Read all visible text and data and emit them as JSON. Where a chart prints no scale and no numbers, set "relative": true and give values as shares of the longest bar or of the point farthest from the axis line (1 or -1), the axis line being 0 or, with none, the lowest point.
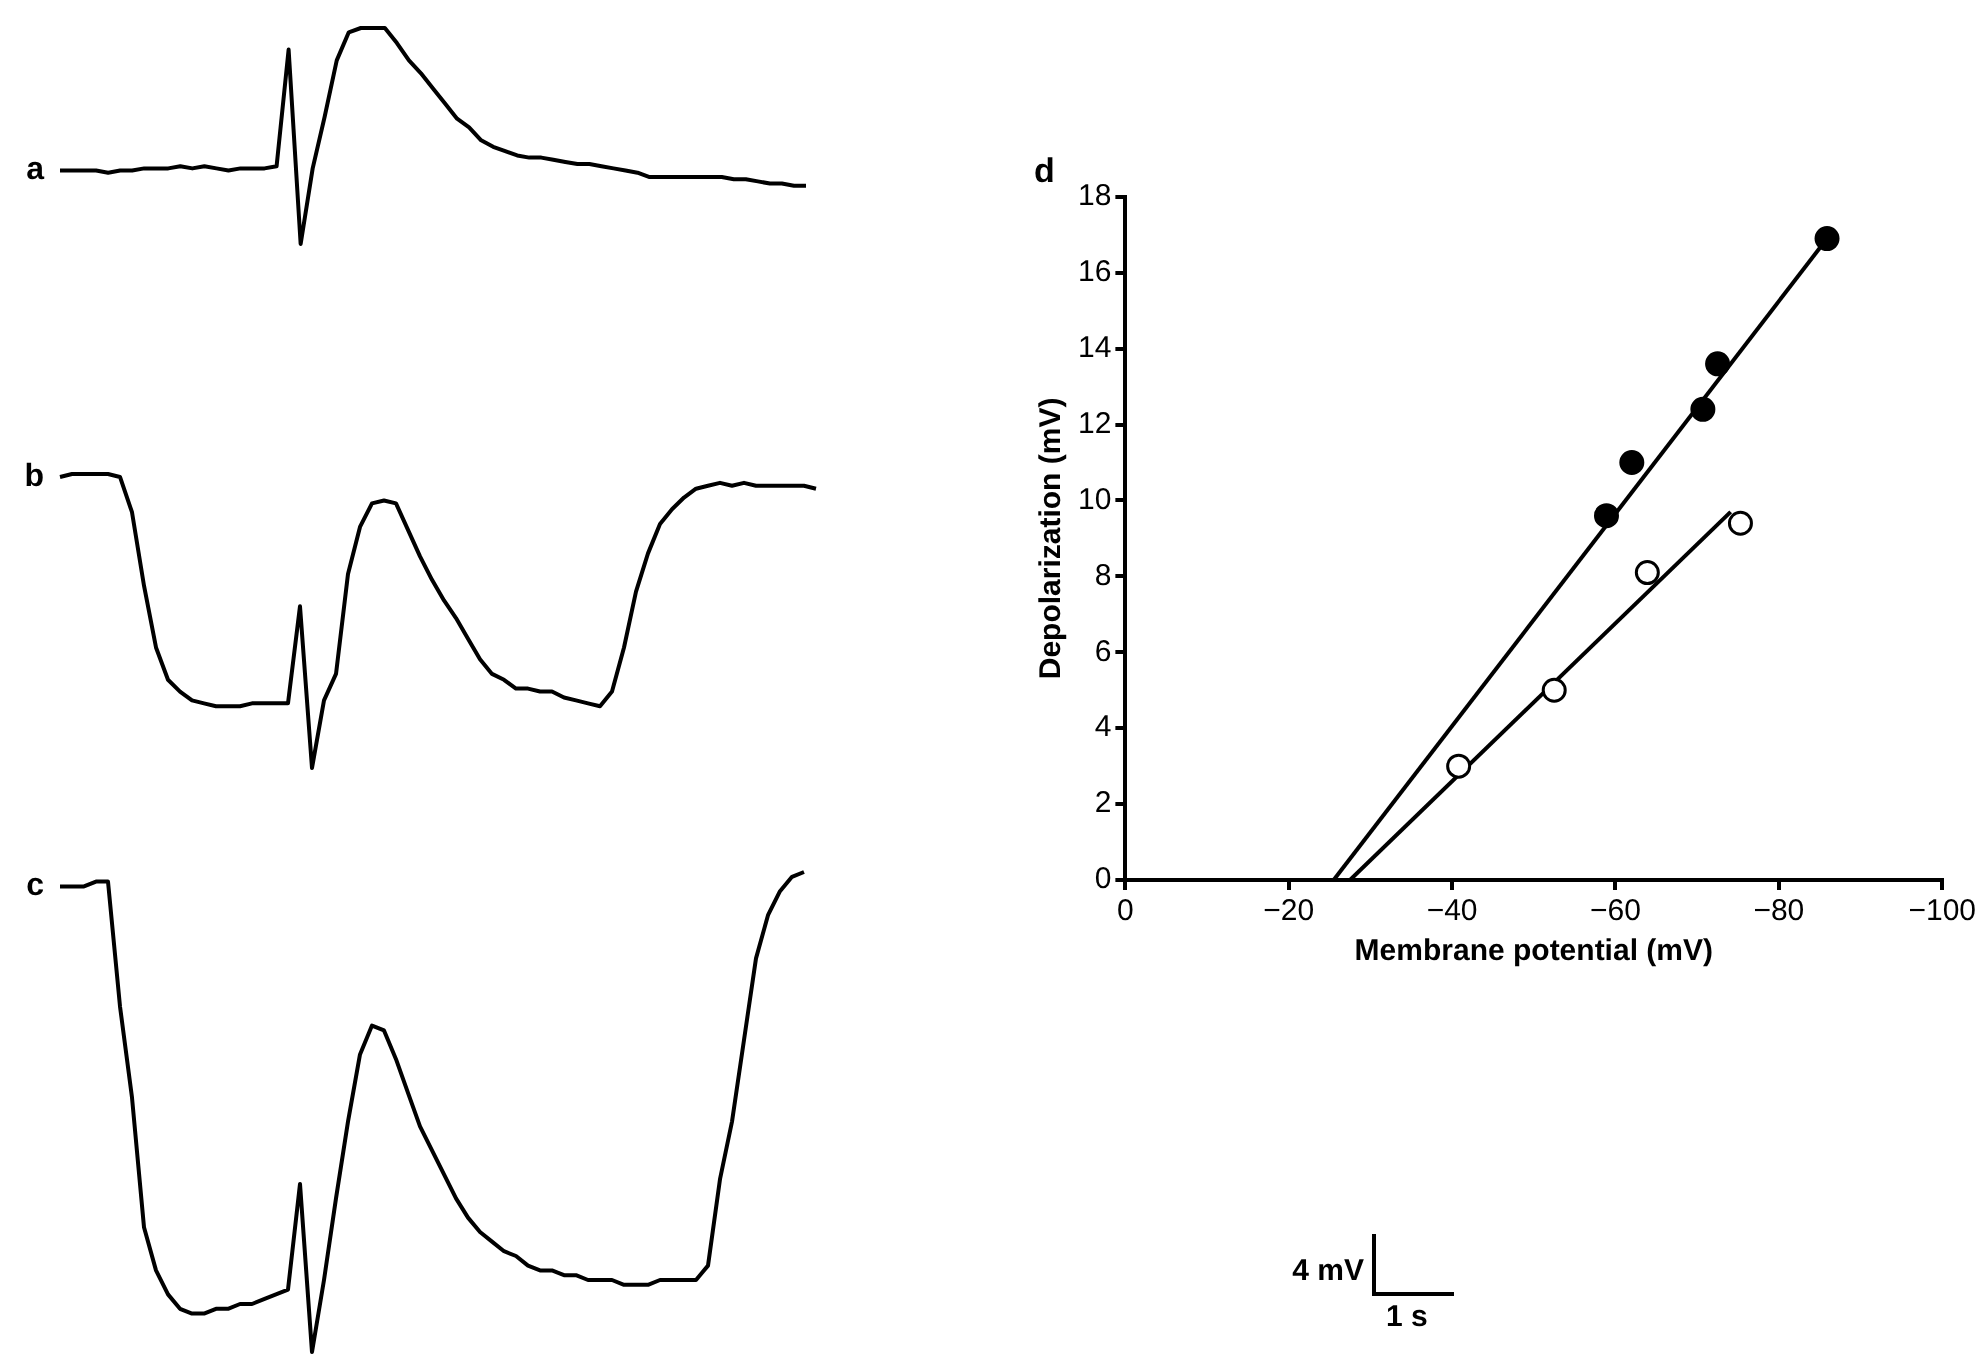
{
  "chart_data": [
    {
      "type": "line",
      "title": "a",
      "relative": true,
      "grid": false,
      "legend": false,
      "marker": "none",
      "categories": [
        null,
        null,
        null,
        null,
        null,
        null,
        null,
        null,
        null,
        null,
        null,
        null,
        null,
        null,
        null,
        null,
        null,
        null,
        null,
        null,
        null,
        null,
        null,
        null,
        null,
        null,
        null,
        null,
        null,
        null,
        null,
        null,
        null,
        null,
        null,
        null,
        null,
        null,
        null,
        null,
        null,
        null,
        null,
        null,
        null,
        null,
        null,
        null,
        null,
        null,
        null,
        null,
        null,
        null,
        null,
        null,
        null,
        null,
        null,
        null,
        null,
        null,
        null
      ],
      "series": [
        {
          "color": "#000000",
          "values": [
            0.34,
            0.34,
            0.34,
            0.34,
            0.33,
            0.34,
            0.34,
            0.35,
            0.35,
            0.35,
            0.36,
            0.35,
            0.36,
            0.35,
            0.34,
            0.35,
            0.35,
            0.35,
            0.36,
            0.9,
            0,
            0.35,
            0.59,
            0.85,
            0.98,
            1,
            1,
            1,
            0.93,
            0.85,
            0.79,
            0.72,
            0.65,
            0.58,
            0.54,
            0.48,
            0.45,
            0.43,
            0.41,
            0.4,
            0.4,
            0.39,
            0.38,
            0.37,
            0.37,
            0.36,
            0.35,
            0.34,
            0.33,
            0.31,
            0.31,
            0.31,
            0.31,
            0.31,
            0.31,
            0.31,
            0.3,
            0.3,
            0.29,
            0.28,
            0.28,
            0.27,
            0.27
          ]
        }
      ]
    },
    {
      "type": "line",
      "title": "b",
      "relative": true,
      "grid": false,
      "legend": false,
      "marker": "none",
      "categories": [
        null,
        null,
        null,
        null,
        null,
        null,
        null,
        null,
        null,
        null,
        null,
        null,
        null,
        null,
        null,
        null,
        null,
        null,
        null,
        null,
        null,
        null,
        null,
        null,
        null,
        null,
        null,
        null,
        null,
        null,
        null,
        null,
        null,
        null,
        null,
        null,
        null,
        null,
        null,
        null,
        null,
        null,
        null,
        null,
        null,
        null,
        null,
        null,
        null,
        null,
        null,
        null,
        null,
        null,
        null,
        null,
        null,
        null,
        null,
        null,
        null,
        null,
        null,
        null
      ],
      "series": [
        {
          "color": "#000000",
          "values": [
            0.99,
            1,
            1,
            1,
            1,
            0.99,
            0.87,
            0.62,
            0.41,
            0.3,
            0.26,
            0.23,
            0.22,
            0.21,
            0.21,
            0.21,
            0.22,
            0.22,
            0.22,
            0.22,
            0.55,
            0,
            0.23,
            0.32,
            0.66,
            0.82,
            0.9,
            0.91,
            0.9,
            0.81,
            0.72,
            0.64,
            0.57,
            0.51,
            0.44,
            0.37,
            0.32,
            0.3,
            0.27,
            0.27,
            0.26,
            0.26,
            0.24,
            0.23,
            0.22,
            0.21,
            0.26,
            0.41,
            0.6,
            0.73,
            0.83,
            0.88,
            0.92,
            0.95,
            0.96,
            0.97,
            0.96,
            0.97,
            0.96,
            0.96,
            0.96,
            0.96,
            0.96,
            0.95
          ]
        }
      ]
    },
    {
      "type": "line",
      "title": "c",
      "relative": true,
      "grid": false,
      "legend": false,
      "marker": "none",
      "categories": [
        null,
        null,
        null,
        null,
        null,
        null,
        null,
        null,
        null,
        null,
        null,
        null,
        null,
        null,
        null,
        null,
        null,
        null,
        null,
        null,
        null,
        null,
        null,
        null,
        null,
        null,
        null,
        null,
        null,
        null,
        null,
        null,
        null,
        null,
        null,
        null,
        null,
        null,
        null,
        null,
        null,
        null,
        null,
        null,
        null,
        null,
        null,
        null,
        null,
        null,
        null,
        null,
        null,
        null,
        null,
        null,
        null,
        null,
        null,
        null,
        null,
        null,
        null
      ],
      "series": [
        {
          "color": "#000000",
          "values": [
            0.97,
            0.97,
            0.97,
            0.98,
            0.98,
            0.72,
            0.53,
            0.26,
            0.17,
            0.12,
            0.09,
            0.08,
            0.08,
            0.09,
            0.09,
            0.1,
            0.1,
            0.11,
            0.12,
            0.13,
            0.35,
            0,
            0.15,
            0.32,
            0.48,
            0.62,
            0.68,
            0.67,
            0.61,
            0.54,
            0.47,
            0.42,
            0.37,
            0.32,
            0.28,
            0.25,
            0.23,
            0.21,
            0.2,
            0.18,
            0.17,
            0.17,
            0.16,
            0.16,
            0.15,
            0.15,
            0.15,
            0.14,
            0.14,
            0.14,
            0.15,
            0.15,
            0.15,
            0.15,
            0.18,
            0.36,
            0.48,
            0.65,
            0.82,
            0.91,
            0.96,
            0.99,
            1
          ]
        }
      ]
    },
    {
      "type": "scatter",
      "title": "d",
      "xlabel": "Membrane potential (mV)",
      "ylabel": "Depolarization (mV)",
      "grid": false,
      "legend": false,
      "marker": "circle",
      "xlim": [
        0,
        -100
      ],
      "xticks": [
        0,
        {
          "value": -20,
          "label": "−20"
        },
        {
          "value": -40,
          "label": "−40"
        },
        {
          "value": -60,
          "label": "−60"
        },
        {
          "value": -80,
          "label": "−80"
        },
        {
          "value": -100,
          "label": "−100"
        }
      ],
      "ylim": [
        0,
        18
      ],
      "yticks": [
        0,
        2,
        4,
        6,
        8,
        10,
        12,
        14,
        16,
        18
      ],
      "annotations": [
        "4 mV",
        "1 s"
      ],
      "series": [
        {
          "color": "#000000",
          "x": [
            -58.9,
            -62,
            -70.7,
            -72.5,
            -85.9
          ],
          "values": [
            9.6,
            11,
            12.4,
            13.6,
            16.9
          ]
        },
        {
          "color": "#ffffff",
          "x": [
            -40.8,
            -52.5,
            -63.9,
            -75.3
          ],
          "values": [
            3,
            5,
            8.1,
            9.4
          ]
        },
        {
          "type": "line",
          "marker": "none",
          "color": "#000000",
          "x": [
            -25.5,
            -85.9
          ],
          "values": [
            0,
            16.9
          ]
        },
        {
          "type": "line",
          "marker": "none",
          "color": "#000000",
          "x": [
            -27.5,
            -74.1
          ],
          "values": [
            0,
            9.7
          ]
        }
      ]
    }
  ]
}
